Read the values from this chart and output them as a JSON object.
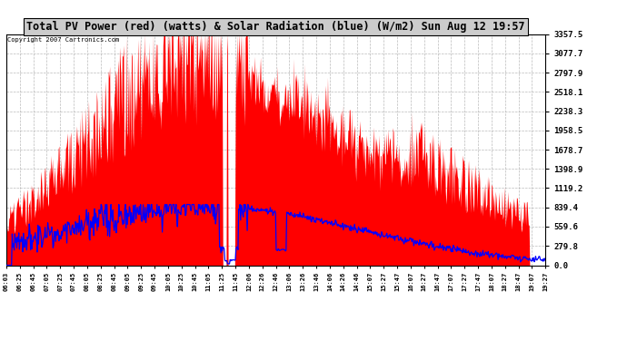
{
  "title": "Total PV Power (red) (watts) & Solar Radiation (blue) (W/m2) Sun Aug 12 19:57",
  "copyright_text": "Copyright 2007 Cartronics.com",
  "y_ticks": [
    0.0,
    279.8,
    559.6,
    839.4,
    1119.2,
    1398.9,
    1678.7,
    1958.5,
    2238.3,
    2518.1,
    2797.9,
    3077.7,
    3357.5
  ],
  "y_max": 3357.5,
  "y_min": 0.0,
  "x_labels": [
    "06:03",
    "06:25",
    "06:45",
    "07:05",
    "07:25",
    "07:45",
    "08:05",
    "08:25",
    "08:45",
    "09:05",
    "09:25",
    "09:45",
    "10:05",
    "10:25",
    "10:45",
    "11:05",
    "11:25",
    "11:45",
    "12:06",
    "12:26",
    "12:46",
    "13:06",
    "13:26",
    "13:46",
    "14:06",
    "14:26",
    "14:46",
    "15:07",
    "15:27",
    "15:47",
    "16:07",
    "16:27",
    "16:47",
    "17:07",
    "17:27",
    "17:47",
    "18:07",
    "18:27",
    "18:47",
    "19:07",
    "19:27"
  ],
  "background_color": "#ffffff",
  "plot_bg_color": "#ffffff",
  "red_color": "#ff0000",
  "blue_color": "#0000ff",
  "grid_color": "#aaaaaa",
  "title_fontsize": 9
}
